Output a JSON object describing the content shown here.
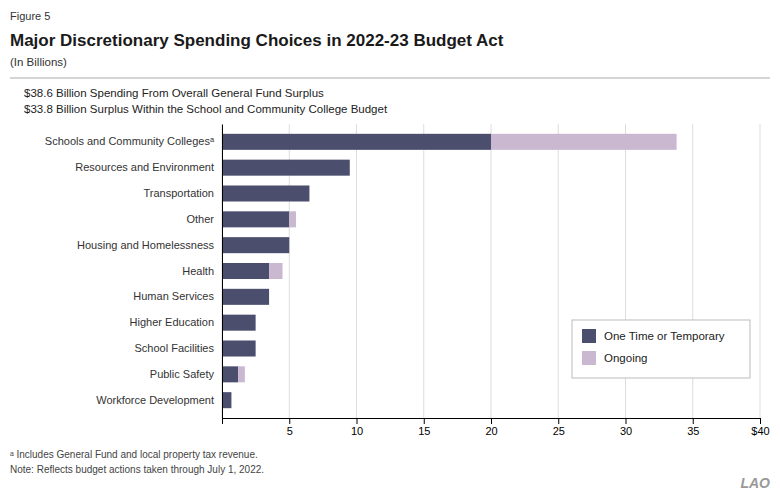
{
  "chart_data": {
    "type": "bar",
    "orientation": "horizontal",
    "stacked": true,
    "title": "Major Discretionary Spending Choices in 2022-23 Budget Act",
    "subtitle": "(In Billions)",
    "annotations": [
      "Figure 5",
      "$38.6 Billion Spending From Overall General Fund Surplus",
      "$33.8 Billion Surplus Within the School and Community College Budget",
      "ᵃ Includes General Fund and local property tax revenue.",
      "Note: Reflects budget actions taken through July 1, 2022.",
      "LAO"
    ],
    "categories": [
      "Schools and Community Collegesᵃ",
      "Resources and Environment",
      "Transportation",
      "Other",
      "Housing and Homelessness",
      "Health",
      "Human Services",
      "Higher Education",
      "School Facilities",
      "Public Safety",
      "Workforce Development"
    ],
    "series": [
      {
        "name": "One Time or Temporary",
        "color": "#4b4e6d",
        "values": [
          20.0,
          9.5,
          6.5,
          5.0,
          5.0,
          3.5,
          3.5,
          2.5,
          2.5,
          1.2,
          0.7
        ]
      },
      {
        "name": "Ongoing",
        "color": "#c9b8d0",
        "values": [
          13.8,
          0.0,
          0.0,
          0.5,
          0.0,
          1.0,
          0.0,
          0.0,
          0.0,
          0.5,
          0.0
        ]
      }
    ],
    "xlim": [
      0,
      40
    ],
    "xticks": [
      {
        "value": 0,
        "label": null
      },
      5,
      10,
      15,
      20,
      25,
      30,
      35,
      {
        "value": 40,
        "label": "$40"
      }
    ],
    "grid": true,
    "legend": "lower right"
  }
}
